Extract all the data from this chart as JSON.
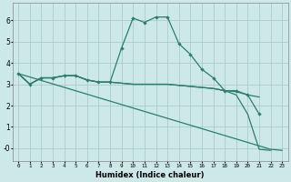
{
  "xlabel": "Humidex (Indice chaleur)",
  "bg_color": "#cce8e8",
  "grid_color": "#aacccc",
  "line_color": "#2e7d6e",
  "series": [
    {
      "x": [
        0,
        1,
        2,
        3,
        4,
        5,
        6,
        7,
        8,
        9,
        10,
        11,
        12,
        13,
        14,
        15,
        16,
        17,
        18,
        19,
        20,
        21,
        22,
        23
      ],
      "y": [
        3.5,
        3.0,
        3.3,
        3.3,
        3.4,
        3.4,
        3.2,
        3.1,
        3.1,
        4.7,
        6.1,
        5.9,
        6.15,
        6.15,
        4.9,
        4.4,
        3.7,
        3.3,
        2.7,
        2.7,
        2.5,
        1.6,
        null,
        null
      ],
      "has_marker": true
    },
    {
      "x": [
        0,
        1,
        2,
        3,
        4,
        5,
        6,
        7,
        8,
        9,
        10,
        11,
        12,
        13,
        14,
        15,
        16,
        17,
        18,
        19,
        20,
        21
      ],
      "y": [
        3.5,
        3.0,
        3.3,
        3.3,
        3.4,
        3.4,
        3.2,
        3.1,
        3.1,
        3.05,
        3.0,
        3.0,
        3.0,
        3.0,
        2.95,
        2.9,
        2.85,
        2.8,
        2.7,
        2.65,
        2.5,
        2.4
      ],
      "has_marker": false
    },
    {
      "x": [
        0,
        1,
        2,
        3,
        4,
        5,
        6,
        7,
        8,
        9,
        10,
        11,
        12,
        13,
        14,
        15,
        16,
        17,
        18,
        19,
        20,
        21,
        22
      ],
      "y": [
        3.5,
        3.0,
        3.3,
        3.3,
        3.4,
        3.4,
        3.2,
        3.1,
        3.1,
        3.05,
        3.0,
        3.0,
        3.0,
        3.0,
        2.95,
        2.9,
        2.85,
        2.8,
        2.7,
        2.5,
        1.6,
        -0.05,
        -0.1
      ],
      "has_marker": false
    },
    {
      "x": [
        0,
        22,
        23
      ],
      "y": [
        3.5,
        -0.05,
        -0.1
      ],
      "has_marker": false
    }
  ],
  "ylim": [
    -0.6,
    6.8
  ],
  "xlim": [
    -0.5,
    23.5
  ],
  "yticks": [
    0,
    1,
    2,
    3,
    4,
    5,
    6
  ],
  "ytick_labels": [
    "-0",
    "1",
    "2",
    "3",
    "4",
    "5",
    "6"
  ],
  "xticks": [
    0,
    1,
    2,
    3,
    4,
    5,
    6,
    7,
    8,
    9,
    10,
    11,
    12,
    13,
    14,
    15,
    16,
    17,
    18,
    19,
    20,
    21,
    22,
    23
  ],
  "xtick_labels": [
    "0",
    "1",
    "2",
    "3",
    "4",
    "5",
    "6",
    "7",
    "8",
    "9",
    "10",
    "11",
    "12",
    "13",
    "14",
    "15",
    "16",
    "17",
    "18",
    "19",
    "20",
    "21",
    "22",
    "23"
  ]
}
